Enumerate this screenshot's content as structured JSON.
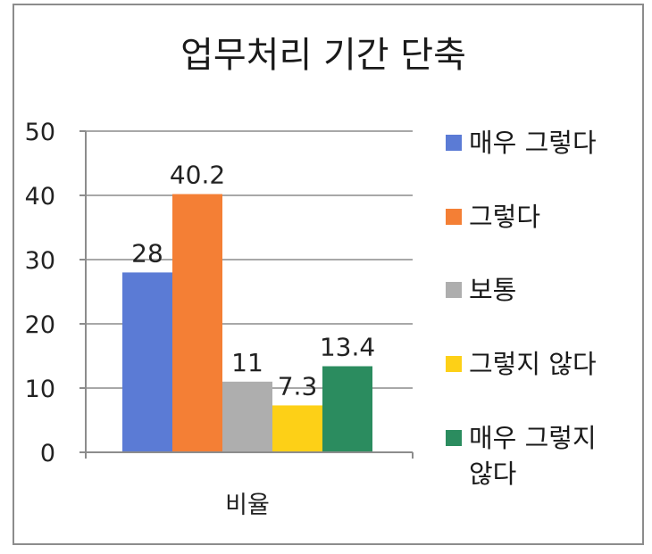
{
  "chart_data": {
    "type": "bar",
    "title": "업무처리 기간 단축",
    "categories": [
      "비율"
    ],
    "series": [
      {
        "name": "매우 그렇다",
        "values": [
          28
        ],
        "label": "28",
        "color": "#5b7bd5"
      },
      {
        "name": "그렇다",
        "values": [
          40.2
        ],
        "label": "40.2",
        "color": "#f47f35"
      },
      {
        "name": "보통",
        "values": [
          11
        ],
        "label": "11",
        "color": "#aeaeae"
      },
      {
        "name": "그렇지 않다",
        "values": [
          7.3
        ],
        "label": "7.3",
        "color": "#fdd017"
      },
      {
        "name": "매우 그렇지 않다",
        "values": [
          13.4
        ],
        "label": "13.4",
        "color": "#2b8c5f"
      }
    ],
    "xlabel": "",
    "ylabel": "",
    "ylim": [
      0,
      50
    ],
    "yticks": [
      "0",
      "10",
      "20",
      "30",
      "40",
      "50"
    ],
    "grid": true,
    "legend_position": "right"
  }
}
